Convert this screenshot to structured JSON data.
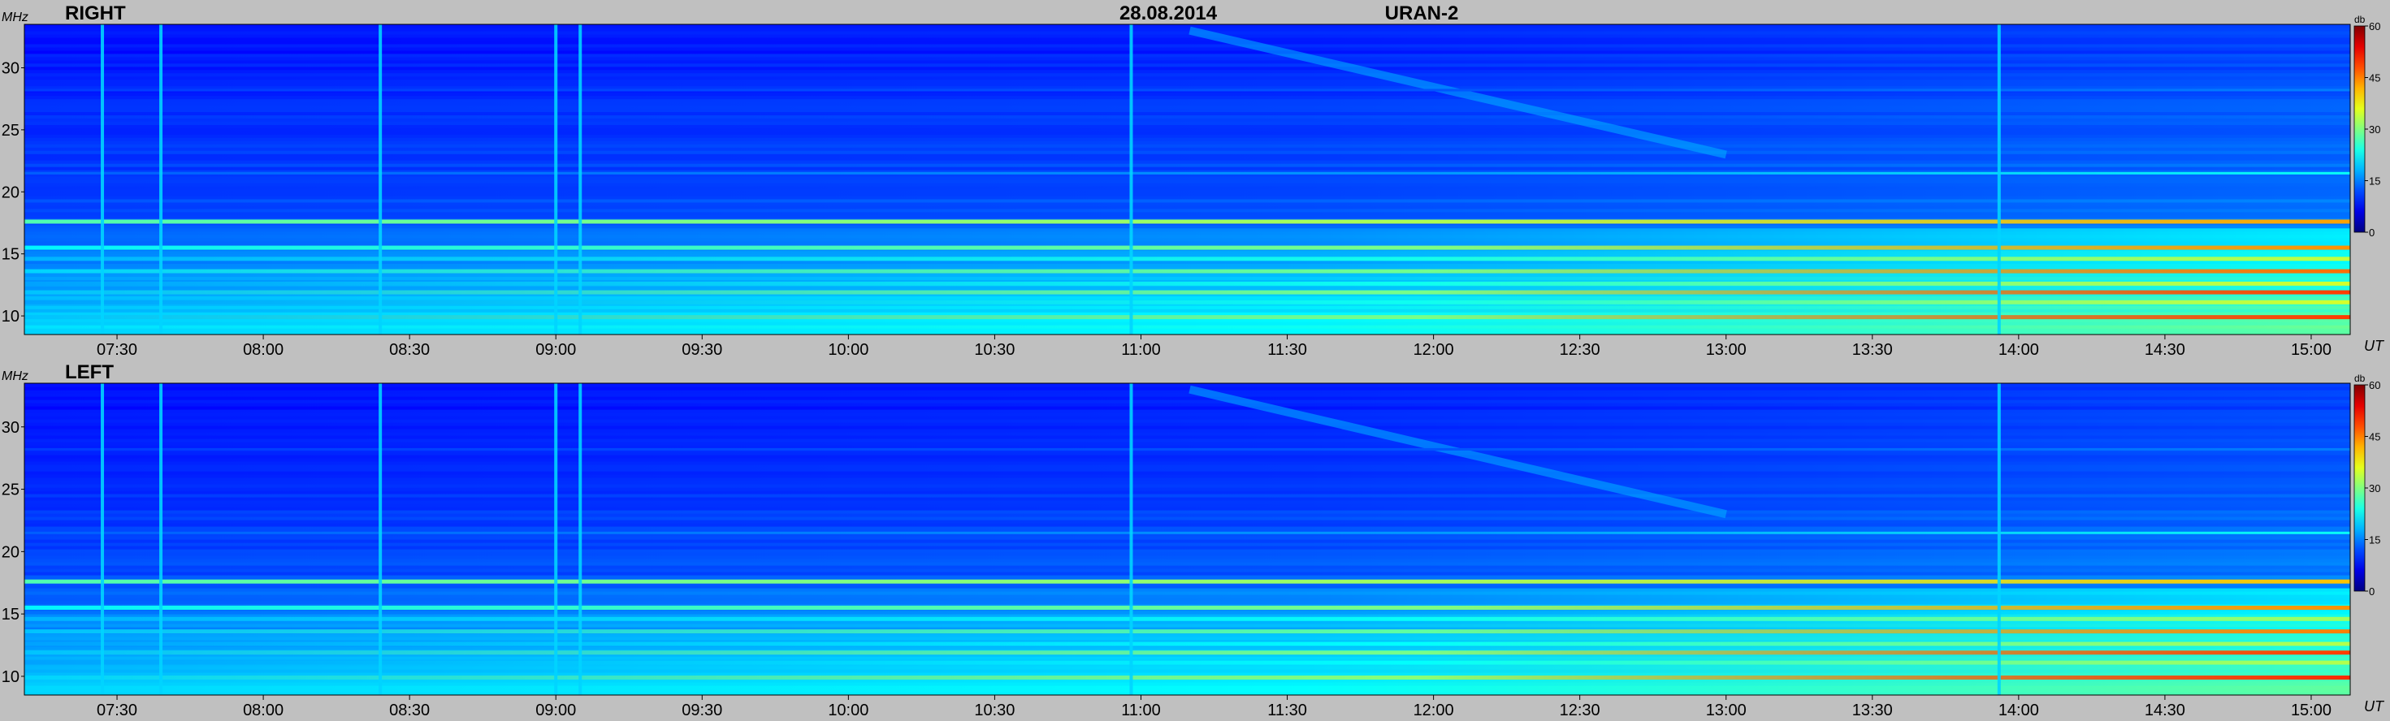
{
  "header": {
    "date": "28.08.2014",
    "instrument": "URAN-2"
  },
  "units": {
    "frequency": "MHz",
    "time": "UT",
    "intensity": "db"
  },
  "chart_data": [
    {
      "type": "heatmap",
      "panel_label": "RIGHT",
      "ylabel": "MHz",
      "xlabel": "UT",
      "ylim": [
        8.5,
        33.5
      ],
      "xlim": [
        "07:11",
        "15:08"
      ],
      "y_ticks": [
        10,
        15,
        20,
        25,
        30
      ],
      "x_ticks": [
        "07:30",
        "08:00",
        "08:30",
        "09:00",
        "09:30",
        "10:00",
        "10:30",
        "11:00",
        "11:30",
        "12:00",
        "12:30",
        "13:00",
        "13:30",
        "14:00",
        "14:30",
        "15:00"
      ],
      "colorbar": {
        "label": "db",
        "range": [
          0,
          60
        ],
        "ticks": [
          0,
          15,
          30,
          45,
          60
        ]
      },
      "interference_bands_mhz": [
        {
          "freq": 17.6,
          "level_db": 27,
          "growth_db": 16
        },
        {
          "freq": 15.5,
          "level_db": 22,
          "growth_db": 22
        },
        {
          "freq": 14.6,
          "level_db": 18,
          "growth_db": 16
        },
        {
          "freq": 13.6,
          "level_db": 20,
          "growth_db": 26
        },
        {
          "freq": 12.6,
          "level_db": 17,
          "growth_db": 18
        },
        {
          "freq": 11.9,
          "level_db": 19,
          "growth_db": 30
        },
        {
          "freq": 11.1,
          "level_db": 17,
          "growth_db": 18
        },
        {
          "freq": 9.9,
          "level_db": 19,
          "growth_db": 30
        },
        {
          "freq": 21.5,
          "level_db": 13,
          "growth_db": 10
        },
        {
          "freq": 28.2,
          "level_db": 11,
          "growth_db": 4
        }
      ],
      "broadband_bursts_ut": [
        "07:27",
        "07:39",
        "08:24",
        "09:00",
        "09:05",
        "10:58",
        "13:56"
      ],
      "drifting_feature": {
        "start_ut": "11:10",
        "start_mhz": 33,
        "end_ut": "13:00",
        "end_mhz": 23
      }
    },
    {
      "type": "heatmap",
      "panel_label": "LEFT",
      "ylabel": "MHz",
      "xlabel": "UT",
      "ylim": [
        8.5,
        33.5
      ],
      "xlim": [
        "07:11",
        "15:08"
      ],
      "y_ticks": [
        10,
        15,
        20,
        25,
        30
      ],
      "x_ticks": [
        "07:30",
        "08:00",
        "08:30",
        "09:00",
        "09:30",
        "10:00",
        "10:30",
        "11:00",
        "11:30",
        "12:00",
        "12:30",
        "13:00",
        "13:30",
        "14:00",
        "14:30",
        "15:00"
      ],
      "colorbar": {
        "label": "db",
        "range": [
          0,
          60
        ],
        "ticks": [
          0,
          15,
          30,
          45,
          60
        ]
      },
      "interference_bands_mhz": [
        {
          "freq": 17.6,
          "level_db": 27,
          "growth_db": 14
        },
        {
          "freq": 15.5,
          "level_db": 22,
          "growth_db": 22
        },
        {
          "freq": 14.6,
          "level_db": 18,
          "growth_db": 14
        },
        {
          "freq": 13.6,
          "level_db": 19,
          "growth_db": 26
        },
        {
          "freq": 12.6,
          "level_db": 17,
          "growth_db": 16
        },
        {
          "freq": 11.9,
          "level_db": 19,
          "growth_db": 30
        },
        {
          "freq": 11.1,
          "level_db": 17,
          "growth_db": 16
        },
        {
          "freq": 9.9,
          "level_db": 20,
          "growth_db": 30
        },
        {
          "freq": 21.5,
          "level_db": 13,
          "growth_db": 10
        },
        {
          "freq": 28.2,
          "level_db": 11,
          "growth_db": 4
        }
      ],
      "broadband_bursts_ut": [
        "07:27",
        "07:39",
        "08:24",
        "09:00",
        "09:05",
        "10:58",
        "13:56"
      ],
      "drifting_feature": {
        "start_ut": "11:10",
        "start_mhz": 33,
        "end_ut": "13:00",
        "end_mhz": 23
      }
    }
  ]
}
